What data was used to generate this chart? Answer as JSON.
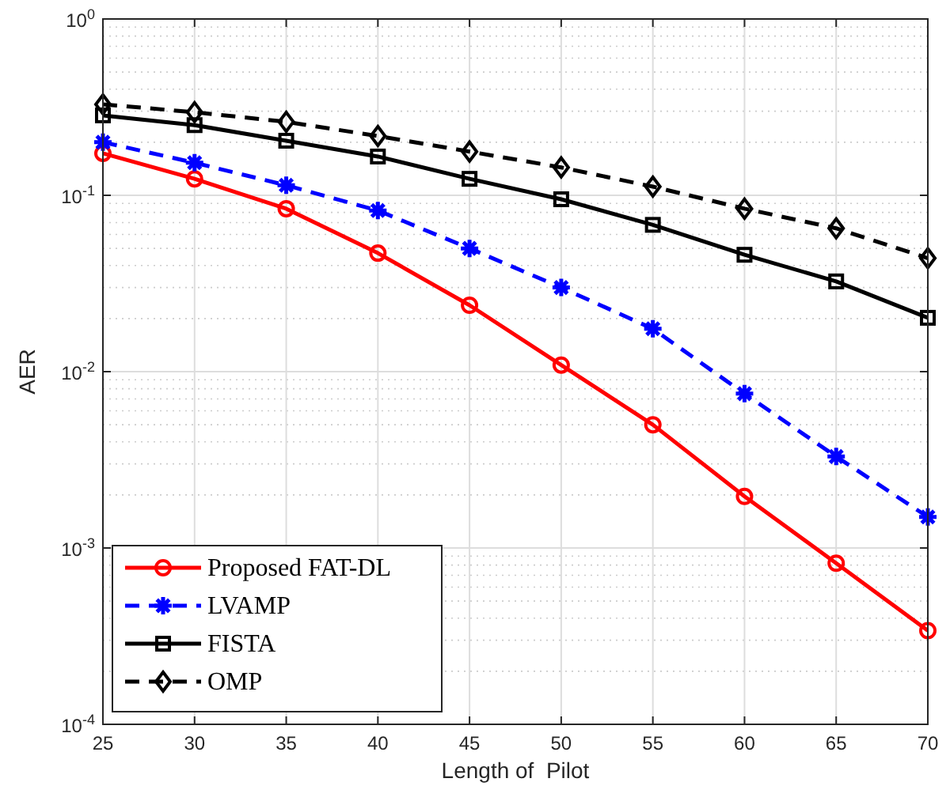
{
  "chart_data": {
    "type": "line",
    "xlabel": "Length of  Pilot",
    "ylabel": "AER",
    "x": [
      25,
      30,
      35,
      40,
      45,
      50,
      55,
      60,
      65,
      70
    ],
    "series": [
      {
        "name": "Proposed FAT-DL",
        "color": "#ff0000",
        "marker": "circle",
        "line_style": "solid",
        "values": [
          0.173,
          0.124,
          0.084,
          0.047,
          0.0238,
          0.0109,
          0.005,
          0.00196,
          0.00082,
          0.00034
        ]
      },
      {
        "name": "LVAMP",
        "color": "#0000ff",
        "marker": "cross",
        "line_style": "dashed",
        "values": [
          0.2,
          0.153,
          0.114,
          0.082,
          0.05,
          0.03,
          0.0175,
          0.0075,
          0.0033,
          0.0015
        ]
      },
      {
        "name": "FISTA",
        "color": "#000000",
        "marker": "square",
        "line_style": "solid",
        "values": [
          0.284,
          0.25,
          0.204,
          0.166,
          0.124,
          0.095,
          0.068,
          0.046,
          0.0325,
          0.0202
        ]
      },
      {
        "name": "OMP",
        "color": "#000000",
        "marker": "diamond",
        "line_style": "dashed",
        "values": [
          0.328,
          0.296,
          0.261,
          0.217,
          0.177,
          0.144,
          0.112,
          0.084,
          0.065,
          0.044
        ]
      }
    ],
    "log": "y",
    "xlim": [
      25,
      70
    ],
    "ylim": [
      0.0001,
      1
    ],
    "xticks": [
      25,
      30,
      35,
      40,
      45,
      50,
      55,
      60,
      65,
      70
    ],
    "yticks": [
      {
        "value": 0.0001,
        "label": "10$^{-4}$"
      },
      {
        "value": 0.001,
        "label": "10$^{-3}$"
      },
      {
        "value": 0.01,
        "label": "10$^{-2}$"
      },
      {
        "value": 0.1,
        "label": "10$^{-1}$"
      },
      {
        "value": 1,
        "label": "10$^{0}$"
      }
    ],
    "grid": true,
    "legend": "bottom left"
  }
}
